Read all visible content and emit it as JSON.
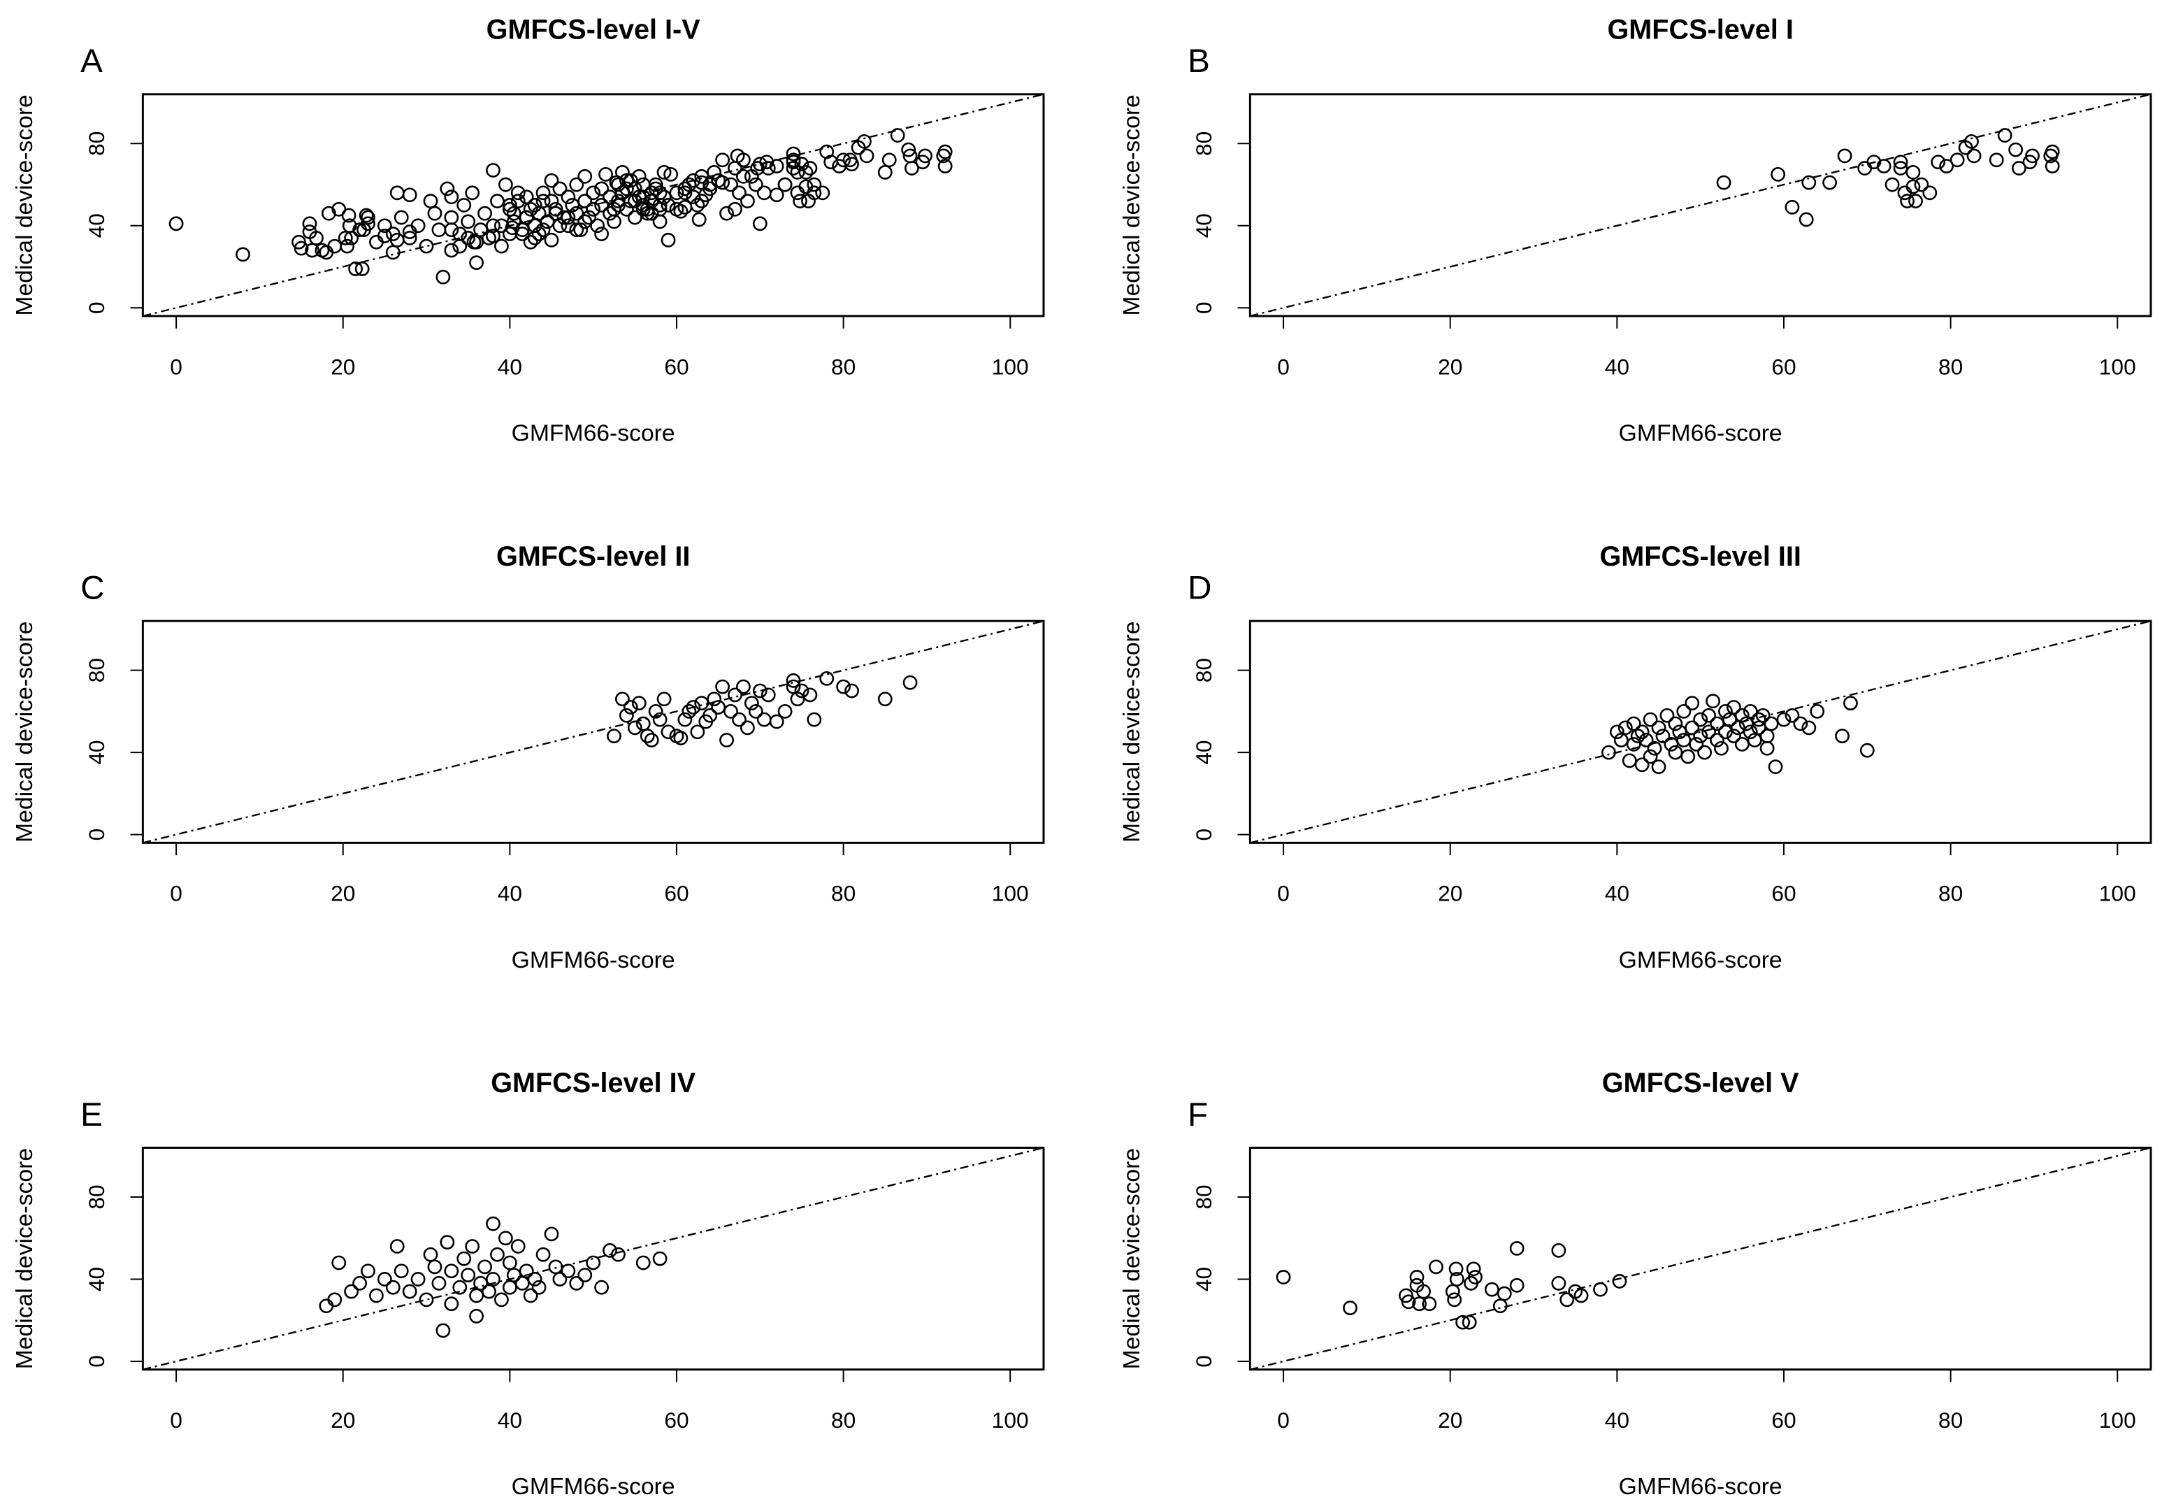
{
  "chart_data": [
    {
      "id": "A",
      "type": "scatter",
      "letter": "A",
      "title": "GMFCS-level I-V",
      "xlabel": "GMFM66-score",
      "ylabel": "Medical device-score",
      "xlim": [
        -4,
        104
      ],
      "ylim": [
        -4,
        104
      ],
      "xticks": [
        0,
        20,
        40,
        60,
        80,
        100
      ],
      "yticks": [
        0,
        40,
        80
      ],
      "reference_line": "y = x (dash-dot)",
      "points_source": "union of GMFCS-levels I, II, III, IV, V"
    },
    {
      "id": "B",
      "type": "scatter",
      "letter": "B",
      "title": "GMFCS-level I",
      "xlabel": "GMFM66-score",
      "ylabel": "Medical device-score",
      "xlim": [
        -4,
        104
      ],
      "ylim": [
        -4,
        104
      ],
      "xticks": [
        0,
        20,
        40,
        60,
        80,
        100
      ],
      "yticks": [
        0,
        40,
        80
      ],
      "x": [
        52.8,
        59.3,
        61,
        62.7,
        63,
        65.5,
        67.3,
        69.7,
        70.8,
        72,
        73,
        74,
        74,
        74.5,
        74.8,
        75.5,
        75.5,
        75.8,
        76.5,
        77.5,
        78.5,
        79.5,
        80.8,
        81.8,
        82.5,
        82.8,
        85.5,
        86.5,
        87.8,
        88.2,
        89.5,
        89.8,
        92.2,
        92.2,
        92
      ],
      "y": [
        61,
        65,
        49,
        43,
        61,
        61,
        74,
        68,
        71,
        69,
        60,
        71,
        68,
        56,
        52,
        59,
        66,
        52,
        60,
        56,
        71,
        69,
        72,
        78,
        81,
        74,
        72,
        84,
        77,
        68,
        71,
        74,
        76,
        69,
        74
      ]
    },
    {
      "id": "C",
      "type": "scatter",
      "letter": "C",
      "title": "GMFCS-level II",
      "xlabel": "GMFM66-score",
      "ylabel": "Medical device-score",
      "xlim": [
        -4,
        104
      ],
      "ylim": [
        -4,
        104
      ],
      "xticks": [
        0,
        20,
        40,
        60,
        80,
        100
      ],
      "yticks": [
        0,
        40,
        80
      ],
      "x": [
        52.5,
        53.5,
        54,
        54.5,
        55,
        55.5,
        56,
        56.5,
        57,
        57.5,
        58,
        58.5,
        59,
        60,
        60.5,
        61,
        61.5,
        62,
        62.5,
        63,
        63.5,
        64,
        64.5,
        65,
        65.5,
        66,
        66.5,
        67,
        67.5,
        68,
        68.5,
        69,
        69.5,
        70,
        70.5,
        71,
        72,
        73,
        74,
        74,
        74.5,
        75,
        76,
        76.5,
        78,
        80,
        81,
        85,
        88
      ],
      "y": [
        48,
        66,
        58,
        62,
        52,
        64,
        54,
        48,
        46,
        60,
        56,
        66,
        50,
        48,
        47,
        56,
        60,
        62,
        50,
        64,
        55,
        58,
        66,
        62,
        72,
        46,
        60,
        68,
        56,
        72,
        52,
        64,
        60,
        70,
        56,
        68,
        55,
        60,
        72,
        75,
        66,
        70,
        68,
        56,
        76,
        72,
        70,
        66,
        74
      ]
    },
    {
      "id": "D",
      "type": "scatter",
      "letter": "D",
      "title": "GMFCS-level III",
      "xlabel": "GMFM66-score",
      "ylabel": "Medical device-score",
      "xlim": [
        -4,
        104
      ],
      "ylim": [
        -4,
        104
      ],
      "xticks": [
        0,
        20,
        40,
        60,
        80,
        100
      ],
      "yticks": [
        0,
        40,
        80
      ],
      "x": [
        39,
        40,
        40.5,
        41,
        41.5,
        42,
        42,
        42.5,
        43,
        43,
        43.5,
        44,
        44,
        44.5,
        45,
        45,
        45.5,
        46,
        46.5,
        47,
        47,
        47.5,
        48,
        48,
        48.5,
        49,
        49,
        49.5,
        50,
        50,
        50.5,
        51,
        51,
        51.5,
        52,
        52,
        52.5,
        53,
        53,
        53.5,
        54,
        54,
        54.5,
        55,
        55,
        55.5,
        56,
        56,
        56.5,
        57,
        57,
        57.5,
        58,
        58,
        58.5,
        59,
        60,
        61,
        62,
        63,
        64,
        67,
        68,
        70
      ],
      "y": [
        40,
        50,
        46,
        52,
        36,
        44,
        54,
        48,
        34,
        50,
        46,
        38,
        56,
        42,
        52,
        33,
        48,
        58,
        44,
        40,
        54,
        50,
        46,
        60,
        38,
        52,
        64,
        44,
        56,
        48,
        40,
        58,
        50,
        65,
        46,
        54,
        42,
        60,
        50,
        56,
        48,
        62,
        52,
        44,
        58,
        54,
        50,
        60,
        46,
        56,
        52,
        58,
        48,
        42,
        54,
        33,
        56,
        58,
        54,
        52,
        60,
        48,
        64,
        41
      ]
    },
    {
      "id": "E",
      "type": "scatter",
      "letter": "E",
      "title": "GMFCS-level IV",
      "xlabel": "GMFM66-score",
      "ylabel": "Medical device-score",
      "xlim": [
        -4,
        104
      ],
      "ylim": [
        -4,
        104
      ],
      "xticks": [
        0,
        20,
        40,
        60,
        80,
        100
      ],
      "yticks": [
        0,
        40,
        80
      ],
      "x": [
        18,
        19,
        19.5,
        21,
        22,
        23,
        24,
        25,
        26,
        26.5,
        27,
        28,
        29,
        30,
        30.5,
        31,
        31.5,
        32,
        32.5,
        33,
        33,
        34,
        34.5,
        35,
        35.5,
        36,
        36,
        36.5,
        37,
        37.5,
        38,
        38,
        38.5,
        39,
        39.5,
        40,
        40,
        40.5,
        41,
        41.5,
        42,
        42.5,
        43,
        43.5,
        44,
        45,
        45.5,
        46,
        47,
        48,
        49,
        50,
        51,
        52,
        53,
        56,
        58
      ],
      "y": [
        27,
        30,
        48,
        34,
        38,
        44,
        32,
        40,
        36,
        56,
        44,
        34,
        40,
        30,
        52,
        46,
        38,
        15,
        58,
        28,
        44,
        36,
        50,
        42,
        56,
        32,
        22,
        38,
        46,
        34,
        67,
        40,
        52,
        30,
        60,
        36,
        48,
        42,
        56,
        38,
        44,
        32,
        40,
        36,
        52,
        62,
        46,
        40,
        44,
        38,
        42,
        48,
        36,
        54,
        52,
        48,
        50
      ]
    },
    {
      "id": "F",
      "type": "scatter",
      "letter": "F",
      "title": "GMFCS-level V",
      "xlabel": "GMFM66-score",
      "ylabel": "Medical device-score",
      "xlim": [
        -4,
        104
      ],
      "ylim": [
        -4,
        104
      ],
      "xticks": [
        0,
        20,
        40,
        60,
        80,
        100
      ],
      "yticks": [
        0,
        40,
        80
      ],
      "x": [
        0,
        8,
        14.7,
        15,
        16,
        16,
        16.3,
        16.8,
        17.5,
        18.3,
        20.3,
        20.5,
        20.7,
        20.8,
        21.5,
        22.3,
        22.5,
        22.8,
        23,
        25,
        26,
        26.5,
        28,
        28,
        33,
        33,
        34,
        35,
        35.7,
        38,
        40.3
      ],
      "y": [
        41,
        26,
        32,
        29,
        41,
        37,
        28,
        34,
        28,
        46,
        34,
        30,
        45,
        40,
        19,
        19,
        38,
        45,
        41,
        35,
        27,
        33,
        37,
        55,
        54,
        38,
        30,
        34,
        32,
        35,
        39
      ]
    }
  ]
}
